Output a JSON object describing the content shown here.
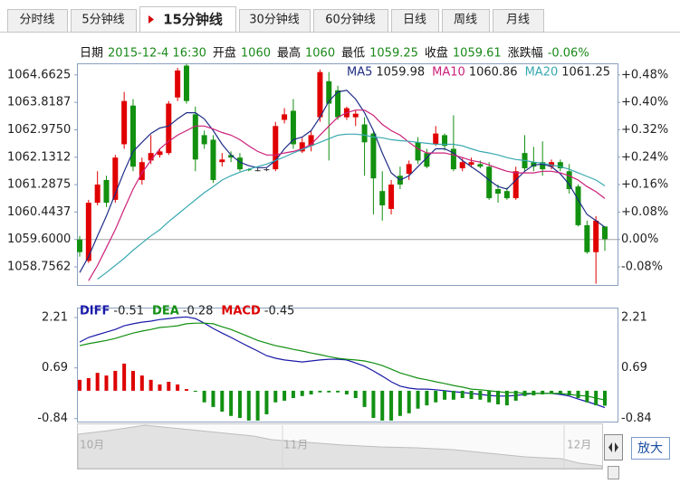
{
  "tabs": [
    "分时线",
    "5分钟线",
    "15分钟线",
    "30分钟线",
    "60分钟线",
    "日线",
    "周线",
    "月线"
  ],
  "active_tab": 2,
  "info": [
    {
      "label": "日期",
      "value": "2015-12-4 16:30"
    },
    {
      "label": "开盘",
      "value": "1060"
    },
    {
      "label": "最高",
      "value": "1060"
    },
    {
      "label": "最低",
      "value": "1059.25"
    },
    {
      "label": "收盘",
      "value": "1059.61"
    },
    {
      "label": "涨跌幅",
      "value": "-0.06%"
    }
  ],
  "navigator": {
    "labels": [
      "10月",
      "11月",
      "12月"
    ],
    "button": "放大"
  },
  "chart_data": [
    {
      "type": "candlestick",
      "up_color": "#e00000",
      "down_color": "#12900f",
      "flat_color": "#333333",
      "open": [
        1059.6,
        1058.94,
        1060.73,
        1061.43,
        1060.82,
        1062.53,
        1063.72,
        1061.43,
        1062.03,
        1062.2,
        1062.26,
        1063.97,
        1064.95,
        1063.45,
        1062.81,
        1062.67,
        1061.98,
        1062.2,
        1062.12,
        1061.76,
        1061.73,
        1061.76,
        1061.76,
        1063.28,
        1063.56,
        1062.31,
        1062.48,
        1063.36,
        1064.47,
        1064.19,
        1063.36,
        1063.36,
        1063.14,
        1062.86,
        1061.09,
        1060.54,
        1061.56,
        1061.62,
        1062.59,
        1062.26,
        1062.53,
        1062.81,
        1062.39,
        1061.79,
        1061.9,
        1061.92,
        1061.84,
        1061.15,
        1061.09,
        1060.87,
        1062.26,
        1061.98,
        1061.98,
        1061.84,
        1061.98,
        1061.7,
        1061.23,
        1060.04,
        1059.21,
        1060.0
      ],
      "high": [
        1059.71,
        1060.82,
        1061.7,
        1061.56,
        1062.2,
        1064.14,
        1063.92,
        1062.12,
        1062.81,
        1062.39,
        1063.86,
        1064.88,
        1065.0,
        1063.69,
        1062.95,
        1062.81,
        1062.26,
        1062.31,
        1062.26,
        1061.79,
        1061.79,
        1061.79,
        1063.22,
        1063.64,
        1063.92,
        1062.73,
        1062.95,
        1064.83,
        1064.75,
        1064.33,
        1063.69,
        1063.58,
        1063.36,
        1062.95,
        1061.7,
        1061.43,
        1061.84,
        1062.03,
        1062.75,
        1062.39,
        1063.09,
        1062.86,
        1063.42,
        1062.12,
        1062.12,
        1062.03,
        1061.98,
        1061.29,
        1061.2,
        1061.84,
        1062.81,
        1062.45,
        1062.62,
        1062.06,
        1062.06,
        1061.92,
        1061.29,
        1060.18,
        1060.32,
        1060.0
      ],
      "low": [
        1059.07,
        1058.88,
        1060.65,
        1060.6,
        1060.73,
        1062.39,
        1061.7,
        1061.29,
        1061.92,
        1062.12,
        1062.2,
        1063.86,
        1063.78,
        1061.7,
        1062.39,
        1061.34,
        1061.84,
        1061.98,
        1061.7,
        1061.7,
        1061.7,
        1061.7,
        1061.7,
        1063.17,
        1062.39,
        1062.26,
        1062.31,
        1063.22,
        1062.03,
        1063.28,
        1063.28,
        1063.09,
        1061.56,
        1060.37,
        1060.18,
        1060.37,
        1061.15,
        1061.43,
        1061.92,
        1061.79,
        1062.48,
        1062.34,
        1061.7,
        1061.7,
        1061.81,
        1061.79,
        1060.82,
        1060.73,
        1060.82,
        1060.82,
        1061.7,
        1061.7,
        1061.56,
        1061.76,
        1061.7,
        1061.01,
        1060.0,
        1059.16,
        1058.24,
        1059.25
      ],
      "close": [
        1059.21,
        1060.73,
        1061.29,
        1060.73,
        1062.12,
        1063.86,
        1061.84,
        1061.98,
        1062.26,
        1062.31,
        1063.78,
        1064.8,
        1063.86,
        1062.06,
        1062.53,
        1061.43,
        1062.06,
        1062.12,
        1061.76,
        1061.73,
        1061.73,
        1061.76,
        1063.09,
        1063.45,
        1062.53,
        1062.59,
        1062.81,
        1064.75,
        1063.78,
        1063.36,
        1063.64,
        1063.47,
        1062.59,
        1061.48,
        1060.65,
        1061.29,
        1061.29,
        1061.92,
        1062.03,
        1061.84,
        1062.86,
        1062.48,
        1061.76,
        1061.98,
        1061.98,
        1061.84,
        1060.87,
        1061.01,
        1060.87,
        1061.7,
        1061.79,
        1061.84,
        1061.76,
        1061.98,
        1061.79,
        1061.15,
        1060.04,
        1059.21,
        1060.18,
        1059.61
      ],
      "series": [
        {
          "name": "MA5",
          "color": "#1f2d86",
          "values": [
            1058.58,
            1059.07,
            1059.71,
            1060.32,
            1061.01,
            1061.7,
            1062.31,
            1062.59,
            1062.86,
            1063.03,
            1063.09,
            1063.31,
            1063.5,
            1063.5,
            1063.31,
            1062.95,
            1062.53,
            1062.2,
            1061.98,
            1061.87,
            1061.81,
            1061.81,
            1062.03,
            1062.39,
            1062.67,
            1062.75,
            1062.95,
            1063.36,
            1063.86,
            1064.14,
            1064.19,
            1063.92,
            1063.5,
            1062.95,
            1062.26,
            1061.65,
            1061.43,
            1061.56,
            1061.84,
            1062.12,
            1062.39,
            1062.39,
            1062.26,
            1062.03,
            1061.84,
            1061.65,
            1061.43,
            1061.23,
            1061.15,
            1061.43,
            1061.7,
            1061.89,
            1061.92,
            1061.84,
            1061.62,
            1061.29,
            1060.82,
            1060.37,
            1060.18,
            1059.98
          ]
        },
        {
          "name": "MA10",
          "color": "#cc1f7a",
          "values": [
            null,
            1058.33,
            1058.8,
            1059.35,
            1059.9,
            1060.54,
            1061.15,
            1061.65,
            1062.03,
            1062.39,
            1062.62,
            1062.81,
            1062.95,
            1063.09,
            1063.09,
            1063.0,
            1062.89,
            1062.81,
            1062.67,
            1062.48,
            1062.31,
            1062.2,
            1062.2,
            1062.26,
            1062.31,
            1062.39,
            1062.53,
            1062.81,
            1063.09,
            1063.36,
            1063.5,
            1063.58,
            1063.58,
            1063.42,
            1063.14,
            1062.95,
            1062.81,
            1062.59,
            1062.39,
            1062.26,
            1062.26,
            1062.26,
            1062.2,
            1062.12,
            1062.03,
            1061.98,
            1061.89,
            1061.79,
            1061.7,
            1061.65,
            1061.65,
            1061.65,
            1061.7,
            1061.7,
            1061.65,
            1061.56,
            1061.43,
            1061.23,
            1061.07,
            1060.86
          ]
        },
        {
          "name": "MA20",
          "color": "#38a8b0",
          "values": [
            null,
            null,
            1058.38,
            1058.58,
            1058.8,
            1059.02,
            1059.27,
            1059.49,
            1059.71,
            1059.9,
            1060.15,
            1060.37,
            1060.6,
            1060.82,
            1061.04,
            1061.23,
            1061.43,
            1061.56,
            1061.67,
            1061.76,
            1061.84,
            1061.92,
            1062.03,
            1062.14,
            1062.26,
            1062.37,
            1062.48,
            1062.59,
            1062.7,
            1062.81,
            1062.84,
            1062.84,
            1062.81,
            1062.75,
            1062.73,
            1062.67,
            1062.64,
            1062.62,
            1062.59,
            1062.56,
            1062.53,
            1062.53,
            1062.53,
            1062.48,
            1062.39,
            1062.31,
            1062.26,
            1062.2,
            1062.12,
            1062.06,
            1062.03,
            1061.98,
            1061.95,
            1061.89,
            1061.84,
            1061.76,
            1061.65,
            1061.54,
            1061.43,
            1061.25
          ]
        }
      ],
      "ylim": [
        1058.2,
        1065.02
      ],
      "yticks": [
        1064.6625,
        1063.8187,
        {
          "value": 1062.975,
          "label": "1062.9750"
        },
        1062.1312,
        1061.2875,
        1060.4437,
        {
          "value": 1059.6,
          "label": "1059.6000"
        },
        1058.7562
      ],
      "y2lim": [
        -0.1321,
        0.5115
      ],
      "y2ticks": [
        {
          "value": 0.4778,
          "label": "+0.48%"
        },
        {
          "value": 0.3981,
          "label": "+0.40%"
        },
        {
          "value": 0.3185,
          "label": "+0.32%"
        },
        {
          "value": 0.2389,
          "label": "+0.24%"
        },
        {
          "value": 0.1593,
          "label": "+0.16%"
        },
        {
          "value": 0.0796,
          "label": "+0.08%"
        },
        {
          "value": 0,
          "label": "0.00%"
        },
        {
          "value": -0.0796,
          "label": "-0.08%"
        }
      ],
      "baseline": 1059.6
    },
    {
      "type": "macd",
      "series": [
        {
          "name": "DIFF",
          "color": "#1a1aa8",
          "values": [
            1.47,
            1.61,
            1.69,
            1.77,
            1.85,
            1.96,
            2.02,
            2.07,
            2.1,
            2.15,
            2.18,
            2.21,
            2.23,
            2.18,
            2.04,
            1.88,
            1.74,
            1.61,
            1.47,
            1.33,
            1.2,
            1.06,
            0.98,
            0.93,
            0.9,
            0.87,
            0.9,
            0.93,
            0.95,
            0.95,
            0.93,
            0.84,
            0.74,
            0.6,
            0.44,
            0.27,
            0.14,
            0.08,
            0.05,
            0.05,
            0.03,
            0,
            -0.03,
            -0.05,
            -0.08,
            -0.11,
            -0.14,
            -0.16,
            -0.16,
            -0.14,
            -0.11,
            -0.08,
            -0.08,
            -0.08,
            -0.11,
            -0.16,
            -0.25,
            -0.33,
            -0.41,
            -0.51
          ]
        },
        {
          "name": "DEA",
          "color": "#129012",
          "values": [
            1.36,
            1.42,
            1.47,
            1.52,
            1.58,
            1.66,
            1.74,
            1.8,
            1.85,
            1.91,
            1.93,
            1.96,
            2.02,
            2.04,
            2.04,
            2.02,
            1.93,
            1.85,
            1.74,
            1.63,
            1.52,
            1.44,
            1.36,
            1.31,
            1.25,
            1.2,
            1.14,
            1.09,
            1.03,
            0.98,
            0.95,
            0.93,
            0.9,
            0.84,
            0.76,
            0.65,
            0.54,
            0.46,
            0.38,
            0.33,
            0.27,
            0.22,
            0.16,
            0.11,
            0.05,
            0.03,
            0,
            -0.03,
            -0.05,
            -0.05,
            -0.08,
            -0.08,
            -0.08,
            -0.08,
            -0.08,
            -0.11,
            -0.14,
            -0.16,
            -0.22,
            -0.28
          ]
        },
        {
          "name": "MACD",
          "color": "#dd0000",
          "down_color": "#129012",
          "bars": true,
          "values": [
            0.33,
            0.38,
            0.54,
            0.46,
            0.6,
            0.82,
            0.6,
            0.46,
            0.33,
            0.19,
            0.27,
            0.19,
            0.05,
            -0.03,
            -0.35,
            -0.49,
            -0.63,
            -0.76,
            -0.82,
            -0.9,
            -0.9,
            -0.71,
            -0.35,
            -0.3,
            -0.22,
            -0.16,
            -0.11,
            -0.05,
            -0.05,
            -0.05,
            -0.11,
            -0.22,
            -0.49,
            -0.82,
            -0.9,
            -0.9,
            -0.76,
            -0.68,
            -0.54,
            -0.44,
            -0.35,
            -0.27,
            -0.27,
            -0.22,
            -0.25,
            -0.27,
            -0.35,
            -0.41,
            -0.44,
            -0.3,
            -0.16,
            -0.14,
            -0.11,
            -0.08,
            -0.08,
            -0.14,
            -0.22,
            -0.35,
            -0.44,
            -0.45
          ]
        }
      ],
      "ylim": [
        -0.93,
        2.51
      ],
      "yticks": [
        2.21,
        0.69,
        -0.84
      ]
    }
  ]
}
